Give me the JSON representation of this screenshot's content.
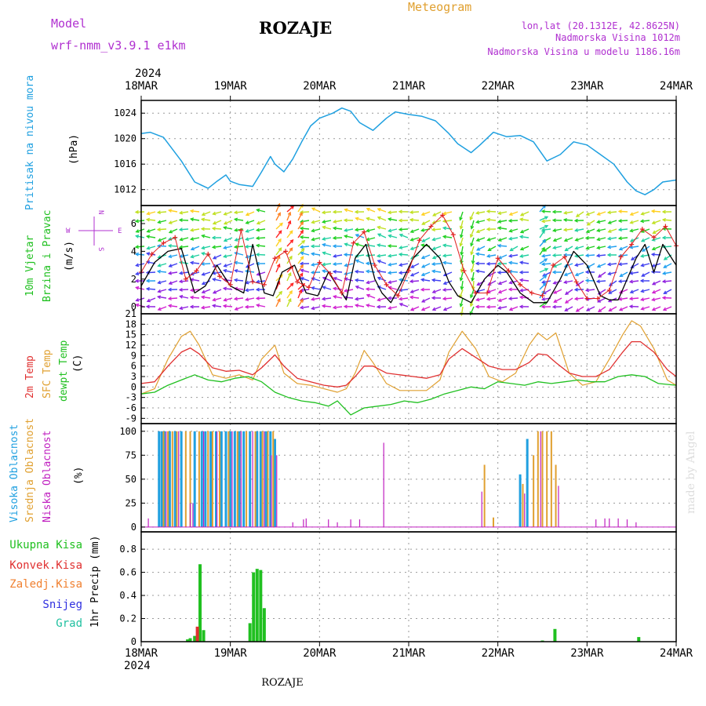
{
  "header": {
    "model_label": "Model",
    "model_name": "wrf-nmm_v3.9.1 e1km",
    "station": "ROZAJE",
    "title": "Meteogram",
    "lonlat": "lon,lat (20.1312E, 42.8625N)",
    "elevation": "Nadmorska Visina 1012m",
    "model_elevation": "Nadmorska Visina u modelu 1186.16m",
    "year_top": "2024",
    "year_bottom": "2024",
    "footer_station": "ROZAJE",
    "watermark": "made by Angel"
  },
  "colors": {
    "pressure": "#1fa0e0",
    "wind_mean": "#000000",
    "wind_gust": "#e02020",
    "temp_2m": "#e03030",
    "temp_sfc": "#e0a030",
    "dewpt": "#20c020",
    "cloud_high": "#20a0e0",
    "cloud_mid": "#e0a030",
    "cloud_low": "#c020c0",
    "precip_total": "#20c020",
    "precip_conv": "#e03030",
    "precip_frz": "#f08030",
    "precip_snow": "#3030e0",
    "precip_grad": "#20c0a0",
    "axis_label_violet": "#b030d0",
    "grid": "#999999"
  },
  "wind_compass": {
    "north": "N",
    "south": "S",
    "west": "W",
    "east": "E"
  },
  "chart_data": [
    {
      "type": "line",
      "panel": "pressure",
      "ylabel_colored": "Pritisak na nivou mora",
      "ylabel_unit": "(hPa)",
      "x_categories": [
        "18MAR",
        "19MAR",
        "20MAR",
        "21MAR",
        "22MAR",
        "23MAR",
        "24MAR"
      ],
      "yticks": [
        1012,
        1016,
        1020,
        1024
      ],
      "ylim": [
        1009.5,
        1026
      ],
      "series": [
        {
          "x": [
            0,
            0.1,
            0.25,
            0.45,
            0.6,
            0.75,
            0.85,
            0.95,
            1.0,
            1.1,
            1.25,
            1.35,
            1.45,
            1.5,
            1.6,
            1.7,
            1.8,
            1.9,
            2.0,
            2.15,
            2.25,
            2.35,
            2.45,
            2.6,
            2.75,
            2.85,
            3.0,
            3.15,
            3.3,
            3.45,
            3.55,
            3.7,
            3.8,
            3.95,
            4.1,
            4.25,
            4.4,
            4.55,
            4.7,
            4.85,
            5.0,
            5.15,
            5.3,
            5.45,
            5.55,
            5.65,
            5.75,
            5.85,
            6.0
          ],
          "y": [
            1020.8,
            1021.0,
            1020.2,
            1016.5,
            1013.2,
            1012.2,
            1013.3,
            1014.3,
            1013.3,
            1012.8,
            1012.5,
            1014.8,
            1017.2,
            1016.0,
            1014.8,
            1016.8,
            1019.5,
            1022.0,
            1023.2,
            1024.0,
            1024.8,
            1024.3,
            1022.5,
            1021.3,
            1023.2,
            1024.2,
            1023.8,
            1023.5,
            1022.8,
            1020.8,
            1019.2,
            1017.8,
            1019.0,
            1021.0,
            1020.3,
            1020.5,
            1019.5,
            1016.5,
            1017.5,
            1019.5,
            1019.0,
            1017.5,
            1016.0,
            1013.2,
            1011.8,
            1011.2,
            1012.0,
            1013.2,
            1013.5
          ]
        }
      ]
    },
    {
      "type": "line",
      "panel": "wind",
      "ylabel_colored_1": "10m Vjetar",
      "ylabel_colored_2": "Brzina i Pravac",
      "ylabel_unit": "(m/s)",
      "yticks": [
        0,
        2,
        4,
        6
      ],
      "ylim": [
        -0.5,
        7.3
      ],
      "series": [
        {
          "name": "mean",
          "x": [
            0,
            0.15,
            0.3,
            0.45,
            0.6,
            0.72,
            0.85,
            1.0,
            1.15,
            1.25,
            1.38,
            1.48,
            1.58,
            1.72,
            1.85,
            1.98,
            2.1,
            2.2,
            2.3,
            2.4,
            2.52,
            2.62,
            2.7,
            2.8,
            2.9,
            3.05,
            3.2,
            3.35,
            3.45,
            3.55,
            3.7,
            3.85,
            4.0,
            4.1,
            4.25,
            4.4,
            4.55,
            4.7,
            4.85,
            5.0,
            5.15,
            5.25,
            5.35,
            5.45,
            5.55,
            5.65,
            5.75,
            5.85,
            6.0
          ],
          "y": [
            1.5,
            3.2,
            4.0,
            4.2,
            1.0,
            1.5,
            3.0,
            1.5,
            1.0,
            4.5,
            1.0,
            0.8,
            2.5,
            3.0,
            1.0,
            0.8,
            2.5,
            1.5,
            0.5,
            3.5,
            4.5,
            2.0,
            1.0,
            0.3,
            1.5,
            3.5,
            4.5,
            3.5,
            1.8,
            0.8,
            0.3,
            2.0,
            3.0,
            2.5,
            1.0,
            0.3,
            0.3,
            2.0,
            4.0,
            3.0,
            0.8,
            0.5,
            0.5,
            2.0,
            3.5,
            4.5,
            2.5,
            4.5,
            3.0
          ]
        },
        {
          "name": "gust",
          "x": [
            0,
            0.12,
            0.25,
            0.38,
            0.5,
            0.62,
            0.75,
            0.88,
            1.0,
            1.12,
            1.25,
            1.38,
            1.5,
            1.62,
            1.75,
            1.88,
            2.0,
            2.12,
            2.25,
            2.38,
            2.5,
            2.62,
            2.75,
            2.88,
            3.0,
            3.12,
            3.25,
            3.38,
            3.5,
            3.62,
            3.75,
            3.88,
            4.0,
            4.12,
            4.25,
            4.38,
            4.5,
            4.62,
            4.75,
            4.88,
            5.0,
            5.12,
            5.25,
            5.38,
            5.5,
            5.62,
            5.75,
            5.88,
            6.0
          ],
          "y": [
            2.5,
            3.8,
            4.6,
            5.0,
            2.0,
            2.6,
            3.8,
            2.2,
            1.6,
            5.5,
            1.8,
            1.6,
            3.5,
            4.0,
            1.8,
            1.4,
            3.2,
            2.4,
            1.0,
            4.6,
            5.4,
            3.0,
            1.6,
            0.8,
            2.6,
            4.8,
            5.8,
            6.6,
            5.2,
            2.6,
            1.0,
            1.0,
            3.5,
            2.6,
            1.6,
            1.0,
            0.8,
            3.0,
            3.6,
            1.8,
            0.6,
            0.6,
            1.2,
            3.6,
            4.5,
            5.6,
            5.0,
            5.8,
            4.4
          ]
        }
      ]
    },
    {
      "type": "line",
      "panel": "temperature",
      "ylabel_2m": "2m Temp",
      "ylabel_sfc": "SFC Temp",
      "ylabel_dew": "dewpt Temp",
      "ylabel_unit": "(C)",
      "yticks": [
        -9,
        -6,
        -3,
        0,
        3,
        6,
        9,
        12,
        15,
        18,
        21
      ],
      "ylim": [
        -10.5,
        21
      ],
      "series": [
        {
          "name": "2m",
          "x": [
            0,
            0.15,
            0.3,
            0.45,
            0.55,
            0.65,
            0.8,
            0.95,
            1.1,
            1.25,
            1.35,
            1.5,
            1.6,
            1.75,
            1.9,
            2.05,
            2.2,
            2.3,
            2.4,
            2.5,
            2.6,
            2.75,
            2.9,
            3.05,
            3.2,
            3.35,
            3.45,
            3.6,
            3.75,
            3.9,
            4.05,
            4.2,
            4.35,
            4.45,
            4.55,
            4.65,
            4.8,
            4.95,
            5.1,
            5.25,
            5.4,
            5.5,
            5.6,
            5.75,
            5.9,
            6.0
          ],
          "y": [
            1.0,
            1.5,
            6.0,
            10.0,
            11.2,
            9.5,
            5.5,
            4.5,
            4.8,
            3.5,
            5.5,
            9.2,
            6.0,
            2.5,
            1.5,
            0.5,
            0.0,
            0.5,
            3.0,
            6.0,
            6.0,
            4.0,
            3.5,
            3.0,
            2.5,
            3.5,
            8.0,
            11.0,
            8.5,
            6.0,
            5.0,
            5.0,
            7.0,
            9.5,
            9.2,
            7.0,
            4.0,
            3.0,
            3.0,
            5.0,
            10.0,
            13.0,
            13.0,
            10.0,
            5.0,
            3.0
          ]
        },
        {
          "name": "sfc",
          "x": [
            0,
            0.15,
            0.3,
            0.45,
            0.55,
            0.65,
            0.8,
            0.95,
            1.1,
            1.25,
            1.35,
            1.5,
            1.6,
            1.75,
            1.9,
            2.05,
            2.2,
            2.3,
            2.4,
            2.5,
            2.6,
            2.75,
            2.9,
            3.05,
            3.2,
            3.35,
            3.45,
            3.6,
            3.75,
            3.9,
            4.05,
            4.2,
            4.35,
            4.45,
            4.55,
            4.65,
            4.8,
            4.95,
            5.1,
            5.25,
            5.4,
            5.5,
            5.6,
            5.75,
            5.9,
            6.0
          ],
          "y": [
            -2.0,
            -0.5,
            8.0,
            14.5,
            16.0,
            12.0,
            3.5,
            2.5,
            3.5,
            2.0,
            8.0,
            12.0,
            4.0,
            1.0,
            0.5,
            -0.5,
            -1.5,
            -0.5,
            4.0,
            10.5,
            7.0,
            1.0,
            -1.0,
            -1.0,
            -1.0,
            2.0,
            10.0,
            16.0,
            11.0,
            3.0,
            1.5,
            4.0,
            12.0,
            15.5,
            13.5,
            15.5,
            4.0,
            0.5,
            1.5,
            8.0,
            15.0,
            19.0,
            17.5,
            11.0,
            2.0,
            0.5
          ]
        },
        {
          "name": "dew",
          "x": [
            0,
            0.15,
            0.3,
            0.45,
            0.6,
            0.75,
            0.9,
            1.05,
            1.2,
            1.35,
            1.5,
            1.65,
            1.8,
            1.95,
            2.1,
            2.2,
            2.35,
            2.5,
            2.65,
            2.8,
            2.95,
            3.1,
            3.25,
            3.4,
            3.55,
            3.7,
            3.85,
            4.0,
            4.15,
            4.3,
            4.45,
            4.6,
            4.75,
            4.9,
            5.05,
            5.2,
            5.35,
            5.5,
            5.65,
            5.8,
            6.0
          ],
          "y": [
            -2.0,
            -1.5,
            0.5,
            2.0,
            3.5,
            2.0,
            1.5,
            2.5,
            3.0,
            1.5,
            -1.5,
            -3.0,
            -4.0,
            -4.5,
            -5.5,
            -4.0,
            -8.0,
            -6.0,
            -5.5,
            -5.0,
            -4.0,
            -4.5,
            -3.5,
            -2.0,
            -1.0,
            0.0,
            -0.5,
            1.5,
            1.0,
            0.5,
            1.5,
            1.0,
            1.5,
            2.0,
            1.5,
            1.5,
            3.0,
            3.5,
            3.0,
            1.0,
            0.5
          ]
        }
      ]
    },
    {
      "type": "bar",
      "panel": "cloud",
      "ylabel_high": "Visoka Oblacnost",
      "ylabel_mid": "Srednja Oblacnost",
      "ylabel_low": "Niska Oblacnost",
      "ylabel_unit": "(%)",
      "yticks": [
        0,
        25,
        50,
        75,
        100
      ],
      "ylim": [
        -5,
        108
      ],
      "series": [
        {
          "name": "high",
          "x": [
            0.2,
            0.23,
            0.26,
            0.32,
            0.38,
            0.45,
            0.6,
            0.68,
            0.72,
            0.78,
            0.84,
            0.9,
            0.95,
            1.0,
            1.05,
            1.1,
            1.15,
            1.22,
            1.3,
            1.34,
            1.4,
            1.45,
            1.5,
            4.25,
            4.33
          ],
          "values": [
            100,
            100,
            100,
            100,
            100,
            100,
            100,
            100,
            100,
            100,
            100,
            100,
            100,
            100,
            100,
            100,
            100,
            100,
            100,
            100,
            100,
            100,
            92,
            55,
            92
          ]
        },
        {
          "name": "mid",
          "x": [
            0.25,
            0.3,
            0.35,
            0.4,
            0.5,
            0.55,
            0.65,
            0.75,
            0.8,
            0.88,
            0.98,
            1.08,
            1.18,
            1.28,
            1.36,
            1.42,
            1.48,
            3.85,
            3.95,
            4.28,
            4.4,
            4.45,
            4.5,
            4.55,
            4.6,
            4.65
          ],
          "values": [
            100,
            100,
            100,
            100,
            100,
            100,
            100,
            100,
            100,
            100,
            100,
            100,
            100,
            100,
            100,
            100,
            100,
            65,
            10,
            45,
            75,
            100,
            100,
            100,
            100,
            65
          ]
        },
        {
          "name": "low",
          "x": [
            0.08,
            0.28,
            0.42,
            0.55,
            0.58,
            0.7,
            0.85,
            1.02,
            1.12,
            1.25,
            1.38,
            1.46,
            1.52,
            1.7,
            1.82,
            1.85,
            2.1,
            2.2,
            2.35,
            2.45,
            2.72,
            3.82,
            4.3,
            4.48,
            4.68,
            5.1,
            5.2,
            5.25,
            5.35,
            5.45,
            5.55
          ],
          "values": [
            9,
            100,
            100,
            25,
            25,
            100,
            100,
            100,
            100,
            100,
            100,
            75,
            75,
            5,
            8,
            9,
            8,
            5,
            8,
            8,
            88,
            37,
            35,
            100,
            43,
            8,
            9,
            9,
            9,
            8,
            5
          ]
        }
      ]
    },
    {
      "type": "bar",
      "panel": "precip",
      "legend": [
        "Ukupna Kisa",
        "Konvek.Kisa",
        "Zaledj.Kisa",
        "Snijeg",
        "Grad"
      ],
      "ylabel_unit": "1hr Precip (mm)",
      "yticks": [
        0,
        0.2,
        0.4,
        0.6,
        0.8
      ],
      "ylim": [
        0,
        0.95
      ],
      "series": [
        {
          "name": "total",
          "x": [
            0.52,
            0.55,
            0.6,
            0.66,
            0.7,
            1.22,
            1.26,
            1.3,
            1.34,
            1.38,
            4.5,
            4.64,
            5.58
          ],
          "values": [
            0.02,
            0.03,
            0.05,
            0.67,
            0.1,
            0.16,
            0.6,
            0.63,
            0.62,
            0.29,
            0.01,
            0.11,
            0.04
          ]
        },
        {
          "name": "conv",
          "x": [
            0.63
          ],
          "values": [
            0.13
          ]
        }
      ]
    }
  ]
}
